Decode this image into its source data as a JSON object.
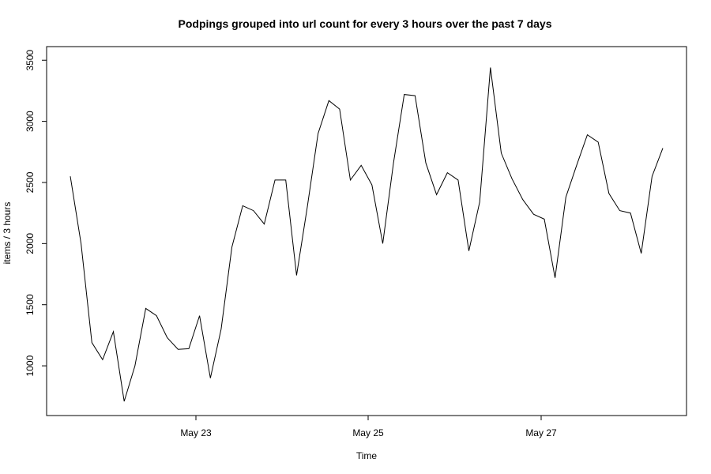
{
  "chart_data": {
    "type": "line",
    "title": "Podpings grouped into url count for every 3 hours  over the past 7 days",
    "xlabel": "Time",
    "ylabel": "items / 3 hours",
    "x_ticks": [
      "May 23",
      "May 25",
      "May 27"
    ],
    "y_ticks": [
      "1000",
      "1500",
      "2000",
      "2500",
      "3000",
      "3500"
    ],
    "ylim": [
      700,
      3550
    ],
    "grid": false,
    "legend": "none",
    "line_color": "#000000",
    "series": [
      {
        "values": [
          2550,
          2000,
          1190,
          1050,
          1280,
          710,
          1000,
          1470,
          1410,
          1230,
          1135,
          1140,
          1410,
          900,
          1300,
          1970,
          2310,
          2270,
          2160,
          2520,
          2520,
          1740,
          2300,
          2900,
          3170,
          3100,
          2520,
          2640,
          2480,
          2000,
          2660,
          3220,
          3210,
          2660,
          2400,
          2580,
          2520,
          1940,
          2340,
          3440,
          2740,
          2530,
          2360,
          2240,
          2200,
          1720,
          2380,
          2640,
          2890,
          2830,
          2410,
          2270,
          2250,
          1920,
          2550,
          2780
        ]
      }
    ]
  }
}
